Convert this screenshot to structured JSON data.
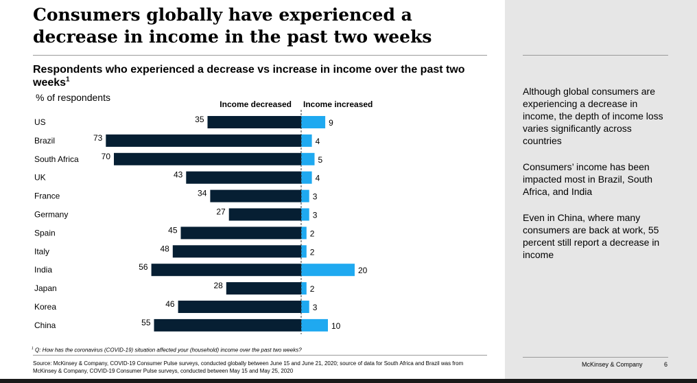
{
  "title": "Consumers globally have experienced a decrease in income in the past two weeks",
  "subtitle": "Respondents who experienced a decrease vs increase in income over the past two weeks",
  "subtitle_footnote_mark": "1",
  "unit_label": "% of respondents",
  "chart_data": {
    "type": "bar",
    "orientation": "horizontal-diverging",
    "categories": [
      "US",
      "Brazil",
      "South Africa",
      "UK",
      "France",
      "Germany",
      "Spain",
      "Italy",
      "India",
      "Japan",
      "Korea",
      "China"
    ],
    "series": [
      {
        "name": "Income decreased",
        "color": "#061f33",
        "values": [
          35,
          73,
          70,
          43,
          34,
          27,
          45,
          48,
          56,
          28,
          46,
          55
        ]
      },
      {
        "name": "Income increased",
        "color": "#1fa9f0",
        "values": [
          9,
          4,
          5,
          4,
          3,
          3,
          2,
          2,
          20,
          2,
          3,
          10
        ]
      }
    ],
    "xlabel": "",
    "ylabel": "% of respondents",
    "legend_position": "top-center"
  },
  "side_notes": [
    "Although global consumers are experiencing a decrease in income, the depth of income loss varies significantly across countries",
    "Consumers’ income has been impacted most in Brazil, South Africa, and India",
    "Even in China, where many consumers are back at work, 55 percent still report a decrease in income"
  ],
  "footnote_mark": "1",
  "footnote": "Q: How has the coronavirus (COVID-19) situation affected your (household) income over the past two weeks?",
  "source": "Source: McKinsey & Company, COVID-19 Consumer Pulse surveys, conducted globally between June 15 and June 21, 2020; source of data for South Africa and Brazil was from McKinsey & Company, COVID-19 Consumer Pulse surveys, conducted between May 15 and May 25, 2020",
  "brand": "McKinsey & Company",
  "page_number": "6",
  "colors": {
    "decrease": "#061f33",
    "increase": "#1fa9f0",
    "sidebar": "#e6e6e6"
  }
}
